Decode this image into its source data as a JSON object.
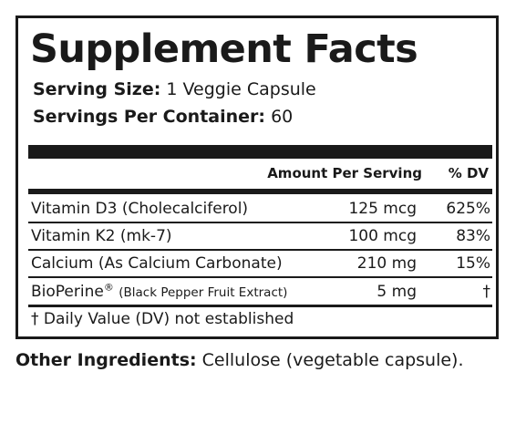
{
  "label": {
    "title": "Supplement Facts",
    "serving_size": {
      "label": "Serving Size:",
      "value": "1 Veggie Capsule"
    },
    "servings_per_container": {
      "label": "Servings Per Container:",
      "value": "60"
    },
    "headers": {
      "amount": "Amount Per Serving",
      "dv": "% DV"
    },
    "rows": [
      {
        "name": "Vitamin D3 (Cholecalciferol)",
        "amount": "125 mcg",
        "dv": "625%"
      },
      {
        "name": "Vitamin K2 (mk-7)",
        "amount": "100 mcg",
        "dv": "83%"
      },
      {
        "name": "Calcium (As Calcium Carbonate)",
        "amount": "210 mg",
        "dv": "15%"
      },
      {
        "name": "BioPerine",
        "registered": "®",
        "name_detail": "(Black Pepper Fruit Extract)",
        "amount": "5 mg",
        "dv": "†"
      }
    ],
    "footnote": "† Daily Value (DV) not established"
  },
  "other_ingredients": {
    "label": "Other Ingredients:",
    "value": "Cellulose (vegetable capsule)."
  }
}
